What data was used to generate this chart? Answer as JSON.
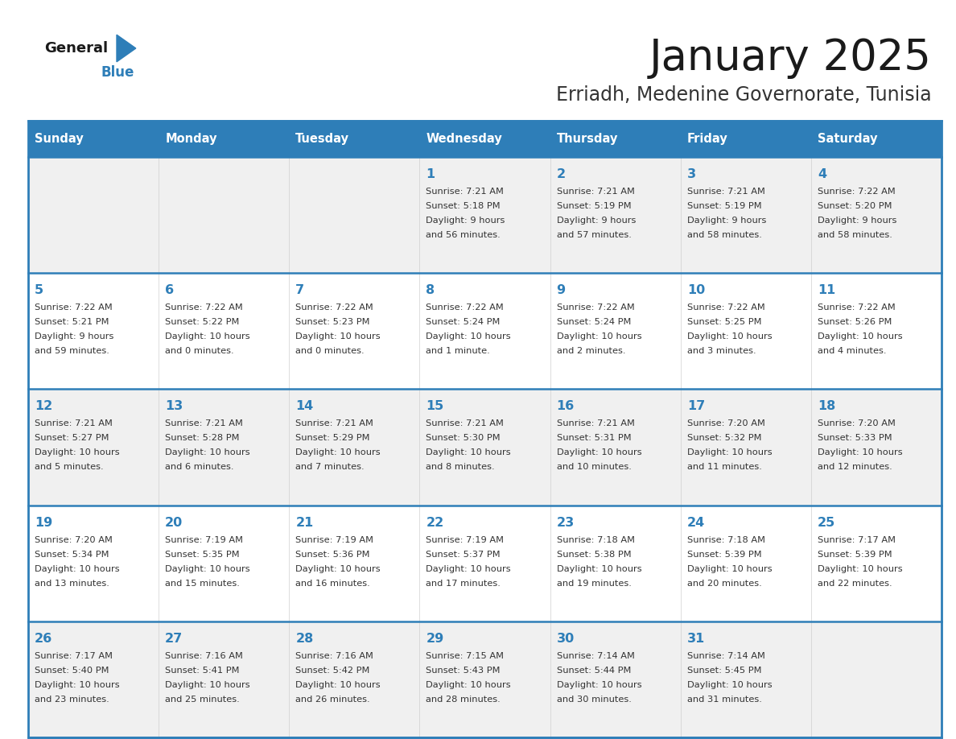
{
  "title": "January 2025",
  "subtitle": "Erriadh, Medenine Governorate, Tunisia",
  "days_of_week": [
    "Sunday",
    "Monday",
    "Tuesday",
    "Wednesday",
    "Thursday",
    "Friday",
    "Saturday"
  ],
  "header_bg": "#2E7EB8",
  "header_text": "#FFFFFF",
  "row_bg_odd": "#F0F0F0",
  "row_bg_even": "#FFFFFF",
  "day_number_color": "#2E7EB8",
  "cell_text_color": "#333333",
  "border_color": "#2E7EB8",
  "title_color": "#1a1a1a",
  "subtitle_color": "#333333",
  "logo_general_color": "#1a1a1a",
  "logo_blue_color": "#2E7EB8",
  "weeks": [
    {
      "days": [
        {
          "day": null,
          "sunrise": null,
          "sunset": null,
          "daylight": null
        },
        {
          "day": null,
          "sunrise": null,
          "sunset": null,
          "daylight": null
        },
        {
          "day": null,
          "sunrise": null,
          "sunset": null,
          "daylight": null
        },
        {
          "day": 1,
          "sunrise": "7:21 AM",
          "sunset": "5:18 PM",
          "daylight": "9 hours\nand 56 minutes."
        },
        {
          "day": 2,
          "sunrise": "7:21 AM",
          "sunset": "5:19 PM",
          "daylight": "9 hours\nand 57 minutes."
        },
        {
          "day": 3,
          "sunrise": "7:21 AM",
          "sunset": "5:19 PM",
          "daylight": "9 hours\nand 58 minutes."
        },
        {
          "day": 4,
          "sunrise": "7:22 AM",
          "sunset": "5:20 PM",
          "daylight": "9 hours\nand 58 minutes."
        }
      ]
    },
    {
      "days": [
        {
          "day": 5,
          "sunrise": "7:22 AM",
          "sunset": "5:21 PM",
          "daylight": "9 hours\nand 59 minutes."
        },
        {
          "day": 6,
          "sunrise": "7:22 AM",
          "sunset": "5:22 PM",
          "daylight": "10 hours\nand 0 minutes."
        },
        {
          "day": 7,
          "sunrise": "7:22 AM",
          "sunset": "5:23 PM",
          "daylight": "10 hours\nand 0 minutes."
        },
        {
          "day": 8,
          "sunrise": "7:22 AM",
          "sunset": "5:24 PM",
          "daylight": "10 hours\nand 1 minute."
        },
        {
          "day": 9,
          "sunrise": "7:22 AM",
          "sunset": "5:24 PM",
          "daylight": "10 hours\nand 2 minutes."
        },
        {
          "day": 10,
          "sunrise": "7:22 AM",
          "sunset": "5:25 PM",
          "daylight": "10 hours\nand 3 minutes."
        },
        {
          "day": 11,
          "sunrise": "7:22 AM",
          "sunset": "5:26 PM",
          "daylight": "10 hours\nand 4 minutes."
        }
      ]
    },
    {
      "days": [
        {
          "day": 12,
          "sunrise": "7:21 AM",
          "sunset": "5:27 PM",
          "daylight": "10 hours\nand 5 minutes."
        },
        {
          "day": 13,
          "sunrise": "7:21 AM",
          "sunset": "5:28 PM",
          "daylight": "10 hours\nand 6 minutes."
        },
        {
          "day": 14,
          "sunrise": "7:21 AM",
          "sunset": "5:29 PM",
          "daylight": "10 hours\nand 7 minutes."
        },
        {
          "day": 15,
          "sunrise": "7:21 AM",
          "sunset": "5:30 PM",
          "daylight": "10 hours\nand 8 minutes."
        },
        {
          "day": 16,
          "sunrise": "7:21 AM",
          "sunset": "5:31 PM",
          "daylight": "10 hours\nand 10 minutes."
        },
        {
          "day": 17,
          "sunrise": "7:20 AM",
          "sunset": "5:32 PM",
          "daylight": "10 hours\nand 11 minutes."
        },
        {
          "day": 18,
          "sunrise": "7:20 AM",
          "sunset": "5:33 PM",
          "daylight": "10 hours\nand 12 minutes."
        }
      ]
    },
    {
      "days": [
        {
          "day": 19,
          "sunrise": "7:20 AM",
          "sunset": "5:34 PM",
          "daylight": "10 hours\nand 13 minutes."
        },
        {
          "day": 20,
          "sunrise": "7:19 AM",
          "sunset": "5:35 PM",
          "daylight": "10 hours\nand 15 minutes."
        },
        {
          "day": 21,
          "sunrise": "7:19 AM",
          "sunset": "5:36 PM",
          "daylight": "10 hours\nand 16 minutes."
        },
        {
          "day": 22,
          "sunrise": "7:19 AM",
          "sunset": "5:37 PM",
          "daylight": "10 hours\nand 17 minutes."
        },
        {
          "day": 23,
          "sunrise": "7:18 AM",
          "sunset": "5:38 PM",
          "daylight": "10 hours\nand 19 minutes."
        },
        {
          "day": 24,
          "sunrise": "7:18 AM",
          "sunset": "5:39 PM",
          "daylight": "10 hours\nand 20 minutes."
        },
        {
          "day": 25,
          "sunrise": "7:17 AM",
          "sunset": "5:39 PM",
          "daylight": "10 hours\nand 22 minutes."
        }
      ]
    },
    {
      "days": [
        {
          "day": 26,
          "sunrise": "7:17 AM",
          "sunset": "5:40 PM",
          "daylight": "10 hours\nand 23 minutes."
        },
        {
          "day": 27,
          "sunrise": "7:16 AM",
          "sunset": "5:41 PM",
          "daylight": "10 hours\nand 25 minutes."
        },
        {
          "day": 28,
          "sunrise": "7:16 AM",
          "sunset": "5:42 PM",
          "daylight": "10 hours\nand 26 minutes."
        },
        {
          "day": 29,
          "sunrise": "7:15 AM",
          "sunset": "5:43 PM",
          "daylight": "10 hours\nand 28 minutes."
        },
        {
          "day": 30,
          "sunrise": "7:14 AM",
          "sunset": "5:44 PM",
          "daylight": "10 hours\nand 30 minutes."
        },
        {
          "day": 31,
          "sunrise": "7:14 AM",
          "sunset": "5:45 PM",
          "daylight": "10 hours\nand 31 minutes."
        },
        {
          "day": null,
          "sunrise": null,
          "sunset": null,
          "daylight": null
        }
      ]
    }
  ]
}
